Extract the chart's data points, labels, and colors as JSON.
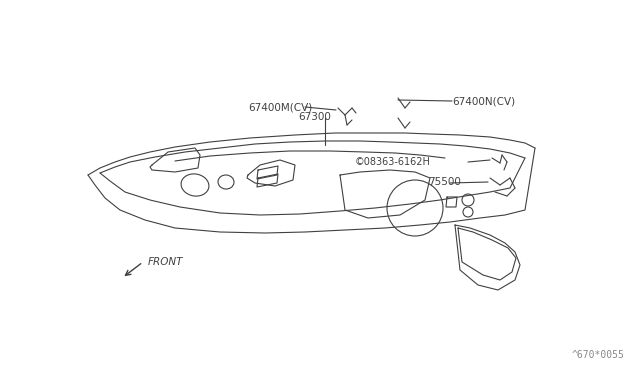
{
  "bg_color": "#ffffff",
  "line_color": "#404040",
  "text_color": "#404040",
  "watermark": "^670*0055",
  "labels": {
    "67400M_CV": "67400M(CV)",
    "67400N_CV": "67400N(CV)",
    "67300": "67300",
    "08363": "©08363-6162H",
    "75500": "75500",
    "FRONT": "FRONT"
  },
  "font_size": 7.5,
  "watermark_fontsize": 7.0
}
